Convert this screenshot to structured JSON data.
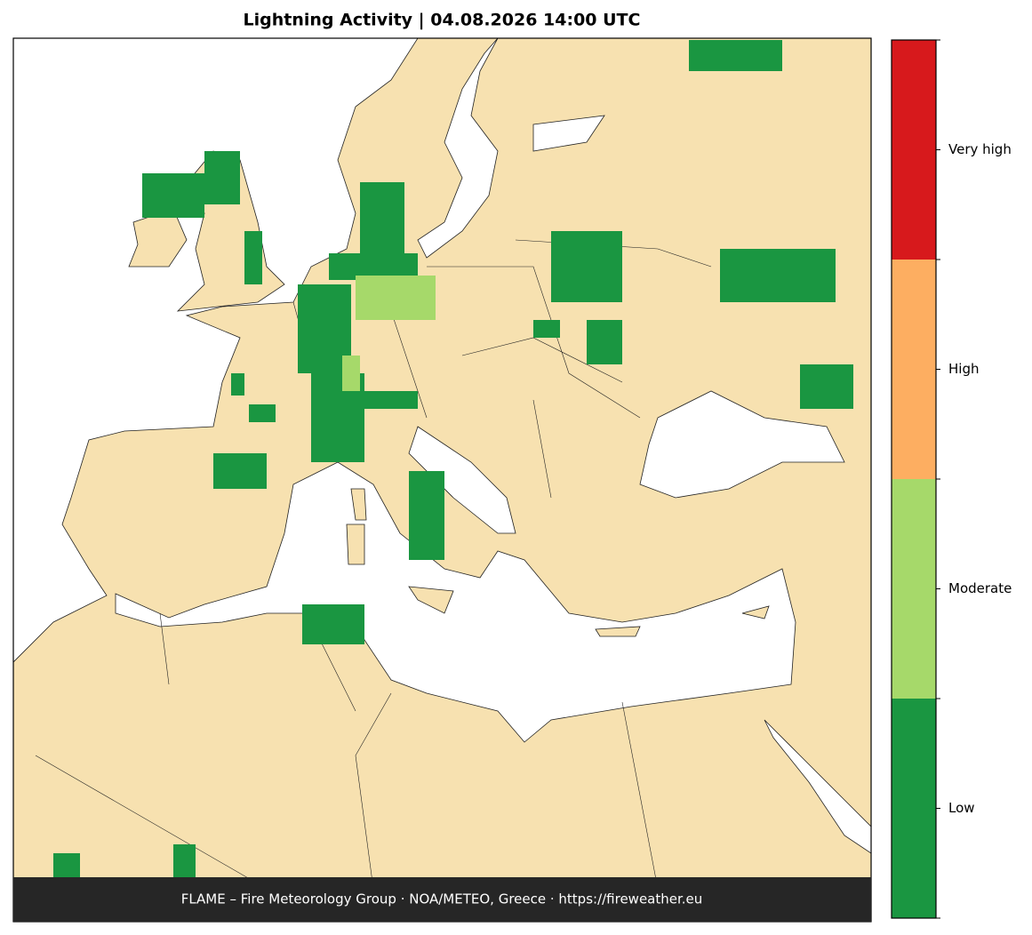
{
  "title": "Lightning Activity  |  04.08.2026 14:00 UTC",
  "colorbar": {
    "levels": [
      {
        "label": "Low",
        "color": "#1a9641"
      },
      {
        "label": "Moderate",
        "color": "#a6d96a"
      },
      {
        "label": "High",
        "color": "#fdae61"
      },
      {
        "label": "Very high",
        "color": "#d7191c"
      }
    ]
  },
  "footer": "FLAME – Fire Meteorology Group · NOA/METEO, Greece · https://fireweather.eu"
}
